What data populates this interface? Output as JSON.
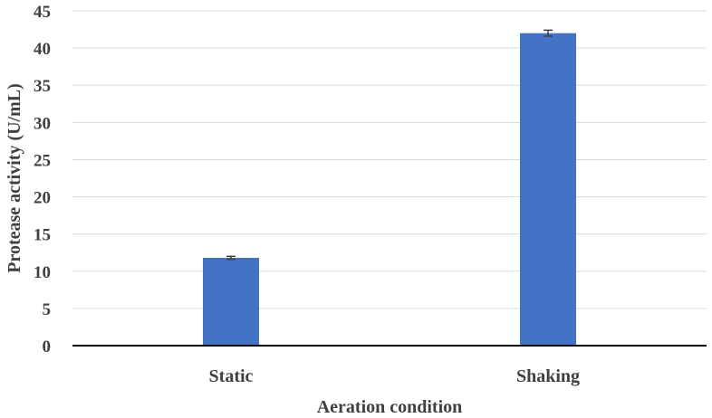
{
  "chart_data": {
    "type": "bar",
    "categories": [
      "Static",
      "Shaking"
    ],
    "values": [
      11.8,
      42.0
    ],
    "errors": [
      0.2,
      0.4
    ],
    "xlabel": "Aeration condition",
    "ylabel": "Protease activity (U/mL)",
    "ylim": [
      0,
      45
    ],
    "yticks": [
      0,
      5,
      10,
      15,
      20,
      25,
      30,
      35,
      40,
      45
    ],
    "grid": true,
    "legend": "none",
    "bar_color": "#4472c4"
  }
}
